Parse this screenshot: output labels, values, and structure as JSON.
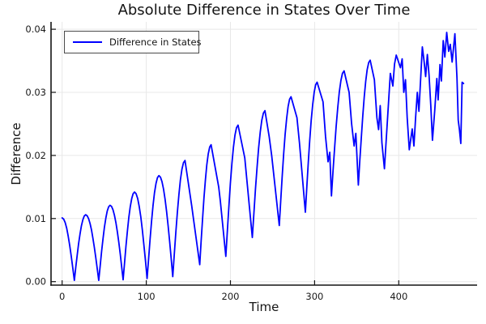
{
  "chart_data": {
    "type": "line",
    "title": "Absolute Difference in States Over Time",
    "xlabel": "Time",
    "ylabel": "Difference",
    "xlim": [
      -13.19,
      493.07
    ],
    "ylim": [
      -0.000552,
      0.041168
    ],
    "grid": true,
    "legend": {
      "label": "Difference in States",
      "position": "top-left"
    },
    "x_ticks": {
      "values": [
        0,
        100,
        200,
        300,
        400
      ],
      "labels": [
        "0",
        "100",
        "200",
        "300",
        "400"
      ]
    },
    "y_ticks": {
      "values": [
        0,
        0.01,
        0.02,
        0.03,
        0.04
      ],
      "labels": [
        "0.00",
        "0.01",
        "0.02",
        "0.03",
        "0.04"
      ]
    },
    "series": [
      {
        "name": "Difference in States",
        "color": "#0000ff",
        "keypoints": [
          [
            0,
            0.0101
          ],
          [
            14.5,
            0.0002
          ],
          [
            28,
            0.0106
          ],
          [
            43.5,
            0.0002
          ],
          [
            57,
            0.0121
          ],
          [
            72.5,
            0.0003
          ],
          [
            86,
            0.0142
          ],
          [
            101,
            0.0005
          ],
          [
            115,
            0.0168
          ],
          [
            131.5,
            0.0008
          ],
          [
            146,
            0.0192
          ],
          [
            163.5,
            0.0027
          ],
          [
            177,
            0.0217
          ],
          [
            194.5,
            0.004
          ],
          [
            209,
            0.0248
          ],
          [
            226,
            0.007
          ],
          [
            241,
            0.0271
          ],
          [
            258,
            0.0089
          ],
          [
            272,
            0.0293
          ],
          [
            289,
            0.011
          ],
          [
            303,
            0.0316
          ],
          [
            320,
            0.0136
          ],
          [
            335,
            0.0334
          ],
          [
            352,
            0.0153
          ],
          [
            366,
            0.0351
          ],
          [
            383,
            0.0179
          ],
          [
            397,
            0.0359
          ],
          [
            412.5,
            0.0209
          ],
          [
            428,
            0.0372
          ],
          [
            440,
            0.0224
          ],
          [
            457,
            0.0395
          ],
          [
            473.7,
            0.0219
          ],
          [
            477,
            0.0314
          ]
        ],
        "detail_points": [
          [
            154,
            0.012
          ],
          [
            156,
            0.01
          ],
          [
            186,
            0.015
          ],
          [
            188,
            0.0128
          ],
          [
            217,
            0.0196
          ],
          [
            220,
            0.0154
          ],
          [
            246,
            0.023
          ],
          [
            249,
            0.02
          ],
          [
            279,
            0.026
          ],
          [
            282,
            0.022
          ],
          [
            310,
            0.0285
          ],
          [
            313,
            0.023
          ],
          [
            316,
            0.019
          ],
          [
            318,
            0.0205
          ],
          [
            341,
            0.03
          ],
          [
            344,
            0.025
          ],
          [
            347,
            0.0215
          ],
          [
            349,
            0.0235
          ],
          [
            371,
            0.032
          ],
          [
            374,
            0.026
          ],
          [
            376,
            0.0241
          ],
          [
            378,
            0.0279
          ],
          [
            380,
            0.022
          ],
          [
            390,
            0.033
          ],
          [
            393,
            0.031
          ],
          [
            395,
            0.0345
          ],
          [
            402,
            0.0339
          ],
          [
            404,
            0.0353
          ],
          [
            406,
            0.03
          ],
          [
            408,
            0.032
          ],
          [
            410,
            0.026
          ],
          [
            416,
            0.0242
          ],
          [
            418,
            0.0215
          ],
          [
            420,
            0.026
          ],
          [
            422,
            0.03
          ],
          [
            424,
            0.027
          ],
          [
            430,
            0.035
          ],
          [
            432,
            0.0325
          ],
          [
            434,
            0.036
          ],
          [
            436,
            0.0327
          ],
          [
            438,
            0.028
          ],
          [
            442.7,
            0.0271
          ],
          [
            445.2,
            0.0322
          ],
          [
            446.8,
            0.0288
          ],
          [
            449,
            0.0344
          ],
          [
            450.6,
            0.0318
          ],
          [
            452.8,
            0.0382
          ],
          [
            454.8,
            0.0356
          ],
          [
            459.3,
            0.0365
          ],
          [
            461.2,
            0.0376
          ],
          [
            463.4,
            0.0348
          ],
          [
            466.7,
            0.0393
          ],
          [
            469.2,
            0.0322
          ],
          [
            470.6,
            0.0256
          ],
          [
            472.1,
            0.0241
          ],
          [
            475.3,
            0.0316
          ]
        ]
      }
    ]
  },
  "colors": {
    "line": "#0000ff",
    "axis": "#141414",
    "grid": "#e8e8e8",
    "tick_text": "#1a1a1a",
    "legend_border": "#4a4a4a",
    "background": "#ffffff"
  }
}
